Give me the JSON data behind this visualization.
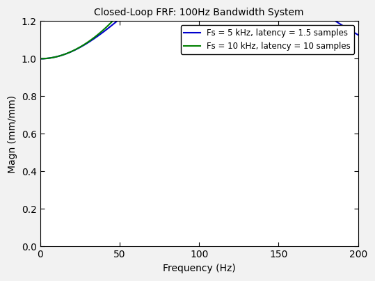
{
  "title": "Closed-Loop FRF: 100Hz Bandwidth System",
  "xlabel": "Frequency (Hz)",
  "ylabel": "Magn (mm/mm)",
  "xlim": [
    0,
    200
  ],
  "ylim": [
    0,
    1.2
  ],
  "xticks": [
    0,
    50,
    100,
    150,
    200
  ],
  "yticks": [
    0,
    0.2,
    0.4,
    0.6,
    0.8,
    1.0,
    1.2
  ],
  "legend1": "Fs = 5 kHz, latency = 1.5 samples",
  "legend2": "Fs = 10 kHz, latency = 10 samples",
  "color1": "#0000CD",
  "color2": "#008000",
  "background_color": "#ffffff",
  "fig_bg_color": "#f2f2f2",
  "linewidth": 1.5,
  "bandwidth_hz": 100,
  "fs1_hz": 5000,
  "latency1_samples": 1.5,
  "fs2_hz": 10000,
  "latency2_samples": 10
}
